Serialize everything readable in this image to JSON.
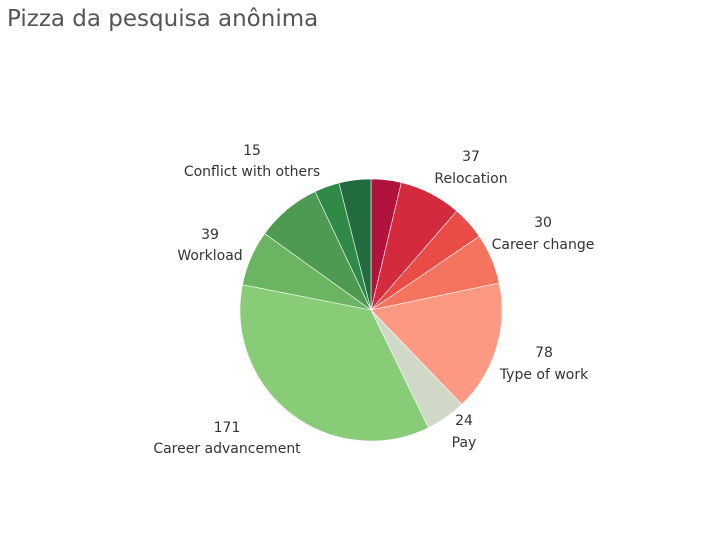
{
  "chart_data": {
    "type": "pie",
    "title": "Pizza da pesquisa anônima",
    "slices": [
      {
        "label": "",
        "value": 18,
        "color": "#b0133b"
      },
      {
        "label": "Relocation",
        "value": 37,
        "color": "#d42a3e",
        "show_label": true
      },
      {
        "label": "",
        "value": 20,
        "color": "#e94b47"
      },
      {
        "label": "Career change",
        "value": 30,
        "color": "#f57460",
        "show_label": true
      },
      {
        "label": "Type of work",
        "value": 78,
        "color": "#fd9882",
        "show_label": true
      },
      {
        "label": "Pay",
        "value": 24,
        "color": "#d0d9c8",
        "show_label": true
      },
      {
        "label": "Career advancement",
        "value": 171,
        "color": "#88cc78",
        "show_label": true
      },
      {
        "label": "",
        "value": 33,
        "color": "#6bb462"
      },
      {
        "label": "Workload",
        "value": 39,
        "color": "#4e9a52",
        "show_label": true
      },
      {
        "label": "Conflict with others",
        "value": 15,
        "color": "#2e8a46",
        "show_label": true
      },
      {
        "label": "",
        "value": 19,
        "color": "#226b3f"
      }
    ],
    "start_angle_deg": 0,
    "direction": "clockwise",
    "legend": "none"
  }
}
